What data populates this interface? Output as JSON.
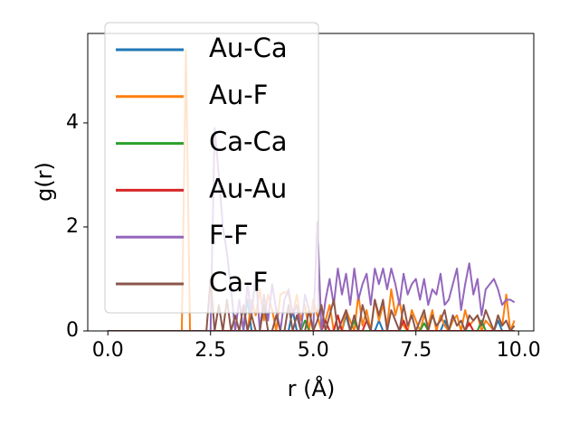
{
  "chart_data": {
    "type": "line",
    "xlabel": "r (Å)",
    "ylabel": "g(r)",
    "xlim": [
      -0.49,
      10.37
    ],
    "ylim": [
      0,
      5.72
    ],
    "xticks": [
      {
        "value": 0,
        "label": "0.0"
      },
      {
        "value": 2.5,
        "label": "2.5"
      },
      {
        "value": 5,
        "label": "5.0"
      },
      {
        "value": 7.5,
        "label": "7.5"
      },
      {
        "value": 10,
        "label": "10.0"
      }
    ],
    "yticks": [
      0,
      2,
      4
    ],
    "legend": "upper left",
    "x": [
      0,
      0.1,
      0.2,
      0.3,
      0.4,
      0.5,
      0.6,
      0.7,
      0.8,
      0.9,
      1,
      1.1,
      1.2,
      1.3,
      1.4,
      1.5,
      1.6,
      1.7,
      1.8,
      1.9,
      2,
      2.1,
      2.2,
      2.3,
      2.4,
      2.5,
      2.6,
      2.7,
      2.8,
      2.9,
      3,
      3.1,
      3.2,
      3.3,
      3.4,
      3.5,
      3.6,
      3.7,
      3.8,
      3.9,
      4,
      4.1,
      4.2,
      4.3,
      4.4,
      4.5,
      4.6,
      4.7,
      4.8,
      4.9,
      5,
      5.1,
      5.2,
      5.3,
      5.4,
      5.5,
      5.6,
      5.7,
      5.8,
      5.9,
      6,
      6.1,
      6.2,
      6.3,
      6.4,
      6.5,
      6.6,
      6.7,
      6.8,
      6.9,
      7,
      7.1,
      7.2,
      7.3,
      7.4,
      7.5,
      7.6,
      7.7,
      7.8,
      7.9,
      8,
      8.1,
      8.2,
      8.3,
      8.4,
      8.5,
      8.6,
      8.7,
      8.8,
      8.9,
      9,
      9.1,
      9.2,
      9.3,
      9.4,
      9.5,
      9.6,
      9.7,
      9.8,
      9.9
    ],
    "series": [
      {
        "name": "Au-Ca",
        "color": "#1f77b4",
        "values": [
          0,
          0,
          0,
          0,
          0,
          0,
          0,
          0,
          0,
          0,
          0,
          0,
          0,
          0,
          0,
          0,
          0,
          0,
          0,
          0,
          0,
          0,
          0,
          0,
          0,
          0,
          0,
          0,
          0,
          0,
          0,
          0,
          0,
          0,
          0.6,
          0,
          0,
          0,
          0,
          0,
          0,
          0,
          0,
          0,
          0,
          0.4,
          0,
          0,
          0,
          0,
          0,
          0,
          0,
          0,
          0,
          0,
          0,
          0,
          0.3,
          0,
          0,
          0,
          0,
          0,
          0,
          0,
          0.2,
          0,
          0,
          0,
          0,
          0,
          0,
          0,
          0,
          0,
          0,
          0,
          0,
          0,
          0,
          0,
          0.2,
          0,
          0,
          0,
          0,
          0,
          0,
          0,
          0,
          0,
          0,
          0,
          0,
          0.2,
          0,
          0,
          0,
          0
        ]
      },
      {
        "name": "Au-F",
        "color": "#ff7f0e",
        "values": [
          0,
          0,
          0,
          0,
          0,
          0,
          0,
          0,
          0,
          0,
          0,
          0,
          0,
          0,
          0,
          0,
          0,
          0,
          0,
          5.4,
          0,
          0,
          0,
          0,
          0,
          0,
          0,
          0,
          0,
          0,
          0,
          0,
          0,
          0,
          0,
          0.6,
          0.3,
          0.8,
          0.2,
          0.7,
          0.4,
          0,
          0.7,
          0.75,
          0.7,
          0.3,
          0.7,
          0.2,
          0.5,
          0,
          0.6,
          0.3,
          0,
          0.2,
          0.5,
          0,
          0.3,
          0,
          0.4,
          0.2,
          0,
          0.7,
          0.1,
          0.4,
          0,
          0.6,
          0.2,
          0.5,
          0.1,
          0.8,
          0.3,
          0.6,
          0.1,
          0,
          0.4,
          0.2,
          0,
          0.3,
          0.1,
          0.4,
          0,
          0.3,
          0.1,
          0,
          0.2,
          0.3,
          0,
          0.4,
          0.1,
          0.2,
          0.3,
          0,
          0.2,
          0.1,
          0,
          0.3,
          0.1,
          0.7,
          0,
          0.2
        ]
      },
      {
        "name": "Ca-Ca",
        "color": "#2ca02c",
        "values": [
          0,
          0,
          0,
          0,
          0,
          0,
          0,
          0,
          0,
          0,
          0,
          0,
          0,
          0,
          0,
          0,
          0,
          0,
          0,
          0,
          0,
          0,
          0,
          0,
          0,
          0,
          0,
          0,
          0,
          0,
          0,
          0,
          0,
          0,
          0,
          0,
          0,
          0,
          0,
          0,
          0,
          0,
          0,
          0,
          0,
          0,
          0,
          0,
          0.2,
          0,
          0,
          0,
          0,
          0,
          0,
          0,
          0,
          0,
          0,
          0,
          0.2,
          0,
          0,
          0,
          0,
          0,
          0,
          0,
          0,
          0,
          0,
          0,
          0,
          0,
          0,
          0,
          0,
          0.15,
          0,
          0,
          0,
          0,
          0,
          0,
          0,
          0,
          0,
          0,
          0,
          0,
          0,
          0.2,
          0,
          0,
          0,
          0,
          0,
          0,
          0,
          0
        ]
      },
      {
        "name": "Au-Au",
        "color": "#d62728",
        "values": [
          0,
          0,
          0,
          0,
          0,
          0,
          0,
          0,
          0,
          0,
          0,
          0,
          0,
          0,
          0,
          0,
          0,
          0,
          0,
          0,
          0,
          0,
          0,
          0,
          0,
          0,
          0,
          0,
          0,
          0,
          0,
          0,
          0,
          0,
          0,
          0,
          0,
          0,
          0,
          0,
          0,
          0,
          0,
          0,
          0,
          0,
          0,
          0,
          0,
          0,
          0,
          0,
          0,
          0.2,
          0,
          0,
          0.3,
          0,
          0,
          0,
          0,
          0,
          0,
          0.2,
          0,
          0,
          0,
          0,
          0,
          0,
          0,
          0,
          0.2,
          0,
          0,
          0,
          0,
          0,
          0,
          0,
          0,
          0,
          0,
          0,
          0,
          0,
          0,
          0,
          0.15,
          0,
          0,
          0,
          0,
          0,
          0,
          0,
          0,
          0,
          0,
          0
        ]
      },
      {
        "name": "F-F",
        "color": "#9467bd",
        "values": [
          0,
          0,
          0,
          0,
          0,
          0,
          0,
          0,
          0,
          0,
          0,
          0,
          0,
          0,
          0,
          0,
          0,
          0,
          0,
          0,
          0,
          0,
          0,
          0,
          0,
          0,
          3.9,
          3.0,
          2.0,
          1.5,
          0.8,
          0,
          0.6,
          0,
          0.9,
          0.3,
          1.1,
          0,
          0.7,
          0.2,
          0.9,
          0.4,
          0,
          0.6,
          0.8,
          0.3,
          0.5,
          0,
          0.7,
          0.4,
          0,
          2.1,
          0,
          0.6,
          1.0,
          0.5,
          1.2,
          0.7,
          1.1,
          0.5,
          1.2,
          0.6,
          0.9,
          1.1,
          0.5,
          1.2,
          0.9,
          1.2,
          0.8,
          1.2,
          0.9,
          0.5,
          1.1,
          0.7,
          0.9,
          1.0,
          0.6,
          1.0,
          0.5,
          0.8,
          0.7,
          1.1,
          0.5,
          0.6,
          0.9,
          1.2,
          0.4,
          0.9,
          1.3,
          0.7,
          1.0,
          0.3,
          0.8,
          0.9,
          1.0,
          0.8,
          0.5,
          0.6,
          0.6,
          0.55
        ]
      },
      {
        "name": "Ca-F",
        "color": "#8c564b",
        "values": [
          0,
          0,
          0,
          0,
          0,
          0,
          0,
          0,
          0,
          0,
          0,
          0,
          0,
          0,
          0,
          0,
          0,
          0,
          0,
          0,
          0,
          0,
          0,
          0,
          0,
          1.0,
          0,
          0.5,
          0,
          0.6,
          0,
          0.3,
          0,
          0.5,
          0,
          0.3,
          0,
          0,
          0.5,
          0,
          0,
          0.3,
          0,
          0,
          0.5,
          0,
          0.3,
          0,
          0,
          0.4,
          0,
          0.2,
          0.5,
          0,
          0.3,
          0.6,
          0,
          0.2,
          0.4,
          0,
          0.3,
          0,
          0.5,
          0.2,
          0,
          0.6,
          0.3,
          0.6,
          0,
          0.4,
          0.2,
          0,
          0.5,
          0.1,
          0.3,
          0,
          0.2,
          0.4,
          0,
          0.3,
          0.1,
          0.2,
          0.4,
          0,
          0.3,
          0.1,
          0.2,
          0,
          0.3,
          0.2,
          0.3,
          0.1,
          0.4,
          0.2,
          0,
          0.3,
          0.1,
          0.2,
          0,
          0.1
        ]
      }
    ]
  }
}
